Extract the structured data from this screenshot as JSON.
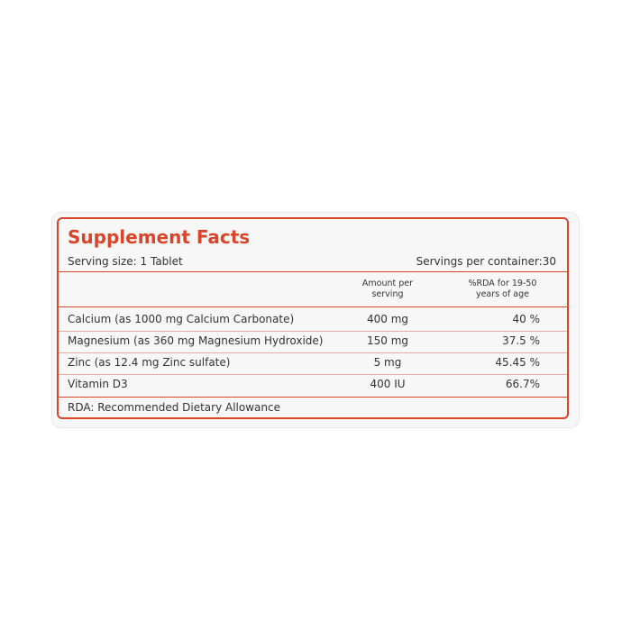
{
  "title": "Supplement Facts",
  "serving_size": "Serving size: 1 Tablet",
  "servings_per_container": "Servings per container:30",
  "table": {
    "headers": [
      "Amount per serving",
      "%RDA for 19-50 years of age"
    ],
    "rows": [
      [
        "Calcium (as 1000 mg Calcium Carbonate)",
        "400 mg",
        "40 %"
      ],
      [
        "Magnesium (as 360 mg Magnesium Hydroxide)",
        "150 mg",
        "37.5 %"
      ],
      [
        "Zinc (as 12.4 mg Zinc sulfate)",
        "5 mg",
        "45.45 %"
      ],
      [
        "Vitamin D3",
        "400 IU",
        "66.7%"
      ]
    ]
  },
  "footnote": "RDA: Recommended Dietary Allowance"
}
